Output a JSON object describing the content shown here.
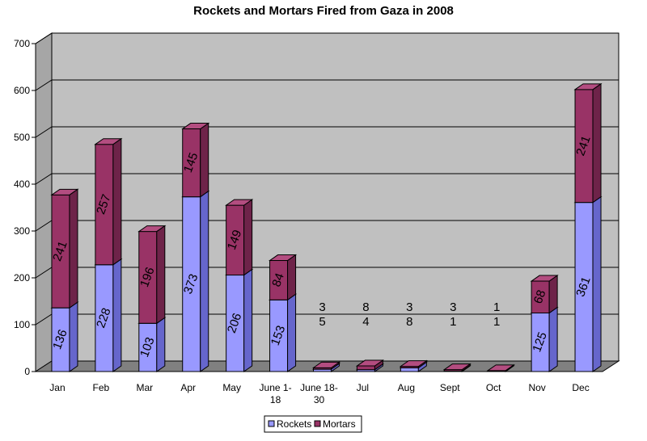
{
  "chart_data": {
    "type": "bar",
    "stacked": true,
    "three_d": true,
    "title": "Rockets and Mortars Fired from Gaza in 2008",
    "categories": [
      "Jan",
      "Feb",
      "Mar",
      "Apr",
      "May",
      "June 1-\n18",
      "June 18-\n30",
      "Jul",
      "Aug",
      "Sept",
      "Oct",
      "Nov",
      "Dec"
    ],
    "series": [
      {
        "name": "Rockets",
        "values": [
          136,
          228,
          103,
          373,
          206,
          153,
          5,
          4,
          8,
          1,
          1,
          125,
          361
        ]
      },
      {
        "name": "Mortars",
        "values": [
          241,
          257,
          196,
          145,
          149,
          84,
          3,
          8,
          3,
          3,
          1,
          68,
          241
        ]
      }
    ],
    "ylim": [
      0,
      700
    ],
    "yticks": [
      0,
      100,
      200,
      300,
      400,
      500,
      600,
      700
    ],
    "grid": true,
    "legend_position": "bottom",
    "xlabel": "",
    "ylabel": ""
  },
  "colors": {
    "rockets_front": "#9999ff",
    "rockets_side": "#6666cc",
    "rockets_top": "#b3b3ff",
    "mortars_front": "#993366",
    "mortars_side": "#6e2349",
    "mortars_top": "#b34d80",
    "plot_back": "#c0c0c0",
    "plot_side": "#a6a6a6",
    "plot_floor": "#808080"
  }
}
